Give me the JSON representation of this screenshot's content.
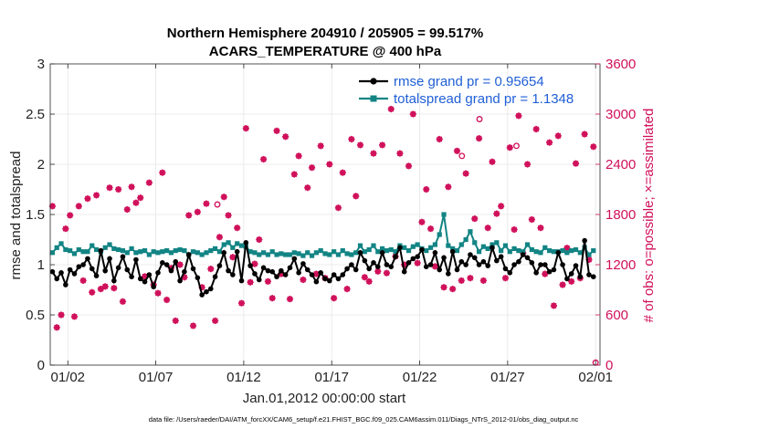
{
  "chart_data": {
    "type": "line",
    "title": "Northern Hemisphere 204910 / 205905 = 99.517%",
    "subtitle": "ACARS_TEMPERATURE @ 400 hPa",
    "xlabel": "Jan.01,2012 00:00:00 start",
    "ylabel": "rmse and totalspread",
    "y2label": "# of obs: o=possible; ×=assimilated",
    "footnote": "data file: /Users/raeder/DAI/ATM_forcXX/CAM6_setup/f.e21.FHIST_BGC.f09_025.CAM6assim.011/Diags_NTrS_2012-01/obs_diag_output.nc",
    "xlim": [
      0.5,
      31.75
    ],
    "ylim": [
      0,
      3
    ],
    "y2lim": [
      0,
      3600
    ],
    "x_ticks": [
      1.5,
      6.5,
      11.5,
      16.5,
      21.5,
      26.5,
      31.5
    ],
    "x_tick_labels": [
      "01/02",
      "01/07",
      "01/12",
      "01/17",
      "01/22",
      "01/27",
      "02/01"
    ],
    "y_ticks": [
      "0",
      "0.5",
      "1",
      "1.5",
      "2",
      "2.5",
      "3"
    ],
    "y2_ticks": [
      "0",
      "600",
      "1200",
      "1800",
      "2400",
      "3000",
      "3600"
    ],
    "grid": true,
    "legend_position": "top-right",
    "colors": {
      "rmse": "#000000",
      "spread": "#138484",
      "obs": "#d0105a"
    },
    "x": [
      0.625,
      0.875,
      1.125,
      1.375,
      1.625,
      1.875,
      2.125,
      2.375,
      2.625,
      2.875,
      3.125,
      3.375,
      3.625,
      3.875,
      4.125,
      4.375,
      4.625,
      4.875,
      5.125,
      5.375,
      5.625,
      5.875,
      6.125,
      6.375,
      6.625,
      6.875,
      7.125,
      7.375,
      7.625,
      7.875,
      8.125,
      8.375,
      8.625,
      8.875,
      9.125,
      9.375,
      9.625,
      9.875,
      10.125,
      10.375,
      10.625,
      10.875,
      11.125,
      11.375,
      11.625,
      11.875,
      12.125,
      12.375,
      12.625,
      12.875,
      13.125,
      13.375,
      13.625,
      13.875,
      14.125,
      14.375,
      14.625,
      14.875,
      15.125,
      15.375,
      15.625,
      15.875,
      16.125,
      16.375,
      16.625,
      16.875,
      17.125,
      17.375,
      17.625,
      17.875,
      18.125,
      18.375,
      18.625,
      18.875,
      19.125,
      19.375,
      19.625,
      19.875,
      20.125,
      20.375,
      20.625,
      20.875,
      21.125,
      21.375,
      21.625,
      21.875,
      22.125,
      22.375,
      22.625,
      22.875,
      23.125,
      23.375,
      23.625,
      23.875,
      24.125,
      24.375,
      24.625,
      24.875,
      25.125,
      25.375,
      25.625,
      25.875,
      26.125,
      26.375,
      26.625,
      26.875,
      27.125,
      27.375,
      27.625,
      27.875,
      28.125,
      28.375,
      28.625,
      28.875,
      29.125,
      29.375,
      29.625,
      29.875,
      30.125,
      30.375,
      30.625,
      30.875,
      31.125,
      31.375
    ],
    "series": [
      {
        "name": "rmse grand pr = 0.95654",
        "values": [
          0.93,
          0.86,
          0.92,
          0.8,
          0.95,
          0.91,
          0.98,
          1.0,
          1.06,
          0.96,
          0.89,
          1.14,
          0.94,
          1.06,
          0.84,
          0.97,
          1.08,
          0.95,
          0.88,
          1.05,
          0.86,
          0.83,
          0.9,
          0.78,
          0.92,
          1.02,
          1.0,
          0.94,
          1.03,
          0.84,
          0.93,
          1.1,
          0.96,
          0.87,
          0.7,
          0.73,
          0.76,
          0.88,
          0.99,
          1.12,
          0.94,
          0.9,
          1.13,
          0.84,
          1.22,
          0.99,
          0.91,
          0.85,
          0.97,
          0.94,
          0.93,
          0.88,
          0.94,
          0.9,
          0.97,
          1.06,
          0.92,
          1.01,
          0.95,
          0.9,
          0.83,
          0.92,
          0.86,
          0.84,
          0.9,
          0.86,
          0.9,
          0.96,
          1.0,
          0.95,
          1.12,
          1.04,
          0.96,
          1.02,
          0.98,
          1.12,
          1.0,
          0.98,
          1.08,
          1.17,
          0.93,
          1.02,
          1.06,
          1.08,
          1.15,
          0.98,
          1.0,
          1.12,
          0.95,
          1.07,
          0.91,
          1.13,
          0.95,
          1.03,
          1.0,
          1.1,
          1.07,
          1.0,
          1.03,
          0.99,
          1.17,
          1.04,
          1.08,
          0.96,
          0.92,
          1.0,
          1.03,
          1.1,
          1.07,
          1.02,
          0.92,
          1.0,
          1.0,
          0.93,
          0.95,
          1.12,
          1.0,
          0.86,
          0.91,
          0.99,
          0.88,
          1.24,
          0.9,
          0.88
        ]
      },
      {
        "name": "totalspread grand pr = 1.1348",
        "values": [
          1.12,
          1.17,
          1.21,
          1.15,
          1.14,
          1.11,
          1.15,
          1.13,
          1.13,
          1.19,
          1.15,
          1.13,
          1.17,
          1.2,
          1.16,
          1.15,
          1.14,
          1.12,
          1.16,
          1.12,
          1.13,
          1.14,
          1.1,
          1.13,
          1.12,
          1.13,
          1.14,
          1.12,
          1.14,
          1.15,
          1.14,
          1.1,
          1.13,
          1.12,
          1.1,
          1.12,
          1.14,
          1.16,
          1.13,
          1.2,
          1.22,
          1.17,
          1.21,
          1.19,
          1.18,
          1.13,
          1.12,
          1.1,
          1.12,
          1.1,
          1.13,
          1.1,
          1.11,
          1.1,
          1.1,
          1.12,
          1.11,
          1.09,
          1.12,
          1.09,
          1.12,
          1.14,
          1.11,
          1.1,
          1.13,
          1.1,
          1.14,
          1.11,
          1.1,
          1.12,
          1.19,
          1.13,
          1.15,
          1.19,
          1.13,
          1.16,
          1.14,
          1.15,
          1.13,
          1.19,
          1.17,
          1.14,
          1.18,
          1.2,
          1.16,
          1.14,
          1.17,
          1.2,
          1.3,
          1.5,
          1.19,
          1.16,
          1.14,
          1.2,
          1.25,
          1.33,
          1.22,
          1.13,
          1.18,
          1.16,
          1.2,
          1.22,
          1.14,
          1.19,
          1.13,
          1.16,
          1.14,
          1.13,
          1.2,
          1.15,
          1.13,
          1.12,
          1.17,
          1.14,
          1.13,
          1.13,
          1.14,
          1.12,
          1.14,
          1.15,
          1.12,
          1.17,
          1.1,
          1.14
        ]
      },
      {
        "name": "assimilated",
        "values": [
          1900,
          450,
          600,
          1630,
          1790,
          580,
          1900,
          1010,
          1990,
          870,
          2030,
          910,
          940,
          2120,
          920,
          2100,
          760,
          1860,
          2130,
          1940,
          2000,
          1060,
          2180,
          960,
          860,
          2300,
          780,
          1160,
          530,
          1200,
          1050,
          1790,
          470,
          1830,
          930,
          1930,
          1150,
          530,
          1530,
          2010,
          1790,
          1290,
          1640,
          740,
          2830,
          990,
          1210,
          1500,
          2460,
          1000,
          800,
          2800,
          1090,
          2730,
          790,
          2280,
          2500,
          1020,
          2120,
          2360,
          1090,
          2620,
          1040,
          2400,
          800,
          1880,
          2300,
          910,
          2700,
          2020,
          2630,
          1050,
          1000,
          2530,
          1120,
          2630,
          1100,
          3060,
          1300,
          2530,
          1200,
          2380,
          3000,
          1220,
          1710,
          2100,
          1630,
          1180,
          2700,
          930,
          2130,
          910,
          2560,
          1010,
          2290,
          1040,
          1750,
          2710,
          1010,
          1640,
          2430,
          1810,
          1900,
          1040,
          2600,
          1620,
          2980,
          1340,
          2400,
          1740,
          2820,
          1640,
          1090,
          2660,
          710,
          2740,
          960,
          1400,
          1000,
          2410,
          1040,
          2760,
          1260,
          2610
        ]
      },
      {
        "name": "possible",
        "values": [
          1900,
          450,
          600,
          1630,
          1790,
          580,
          1900,
          1010,
          1990,
          870,
          2030,
          910,
          940,
          2120,
          920,
          2100,
          760,
          1860,
          2130,
          1940,
          2000,
          1060,
          2180,
          960,
          860,
          2300,
          780,
          1160,
          530,
          1200,
          1050,
          1790,
          470,
          1830,
          930,
          1930,
          1150,
          530,
          1530,
          2010,
          1790,
          1290,
          1640,
          740,
          2830,
          990,
          1210,
          1500,
          2460,
          1000,
          800,
          2800,
          1090,
          2730,
          790,
          2280,
          2500,
          1020,
          2120,
          2360,
          1090,
          2620,
          1040,
          2400,
          800,
          1880,
          2300,
          910,
          2700,
          2020,
          2630,
          1050,
          1000,
          2530,
          1120,
          2630,
          1100,
          3060,
          1300,
          2530,
          1200,
          2380,
          3000,
          1220,
          1710,
          2100,
          1630,
          1180,
          2700,
          930,
          2130,
          910,
          2560,
          1010,
          2290,
          1040,
          1750,
          2710,
          1010,
          1640,
          2430,
          1810,
          1900,
          1040,
          2600,
          1620,
          2980,
          1340,
          2400,
          1740,
          2820,
          1640,
          1090,
          2660,
          710,
          2740,
          960,
          1400,
          1000,
          2410,
          1040,
          2760,
          1260,
          2610
        ]
      }
    ],
    "extra_possible_markers": [
      {
        "x": 10.0,
        "value": 1920
      },
      {
        "x": 23.9,
        "value": 2500
      },
      {
        "x": 24.9,
        "value": 2940
      },
      {
        "x": 27.0,
        "value": 2620
      },
      {
        "x": 31.5,
        "value": 30
      }
    ]
  }
}
